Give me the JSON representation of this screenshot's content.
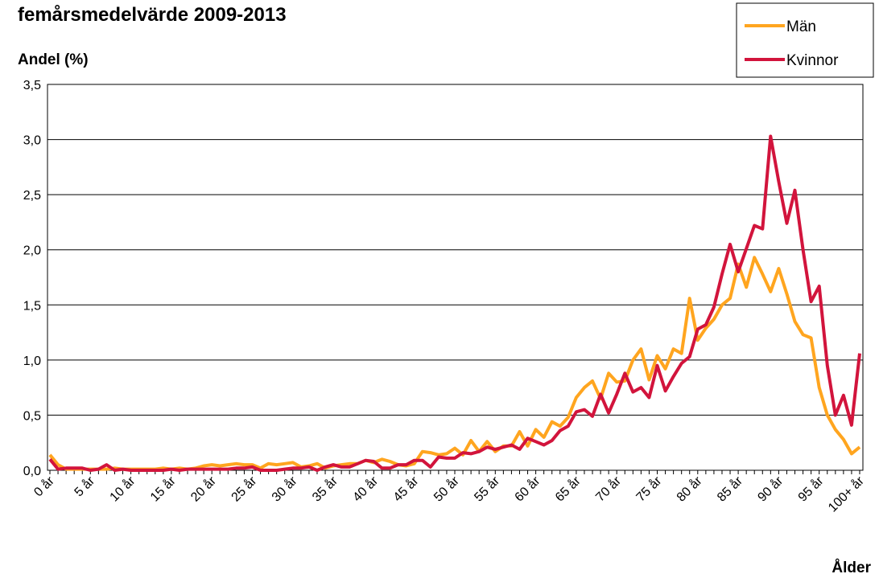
{
  "chart_data": {
    "type": "line",
    "title": "femårsmedelvärde 2009-2013",
    "y_label": "Andel (%)",
    "x_label": "Ålder",
    "categories": [
      "0 år",
      null,
      null,
      null,
      null,
      "5 år",
      null,
      null,
      null,
      null,
      "10 år",
      null,
      null,
      null,
      null,
      "15 år",
      null,
      null,
      null,
      null,
      "20 år",
      null,
      null,
      null,
      null,
      "25 år",
      null,
      null,
      null,
      null,
      "30 år",
      null,
      null,
      null,
      null,
      "35 år",
      null,
      null,
      null,
      null,
      "40 år",
      null,
      null,
      null,
      null,
      "45 år",
      null,
      null,
      null,
      null,
      "50 år",
      null,
      null,
      null,
      null,
      "55 år",
      null,
      null,
      null,
      null,
      "60 år",
      null,
      null,
      null,
      null,
      "65 år",
      null,
      null,
      null,
      null,
      "70 år",
      null,
      null,
      null,
      null,
      "75 år",
      null,
      null,
      null,
      null,
      "80 år",
      null,
      null,
      null,
      null,
      "85 år",
      null,
      null,
      null,
      null,
      "90 år",
      null,
      null,
      null,
      null,
      "95 år",
      null,
      null,
      null,
      null,
      "100+ år"
    ],
    "series": [
      {
        "name": "Män",
        "color": "#ffa51f",
        "values": [
          0.14,
          0.05,
          0.01,
          0.01,
          0.01,
          0.01,
          0.01,
          0.01,
          0.02,
          0.01,
          0.01,
          0.01,
          0.01,
          0.01,
          0.02,
          0.01,
          0.02,
          0.01,
          0.02,
          0.04,
          0.05,
          0.04,
          0.05,
          0.06,
          0.05,
          0.05,
          0.02,
          0.06,
          0.05,
          0.06,
          0.07,
          0.03,
          0.04,
          0.06,
          0.02,
          0.04,
          0.05,
          0.06,
          0.06,
          0.09,
          0.07,
          0.1,
          0.08,
          0.05,
          0.04,
          0.06,
          0.17,
          0.16,
          0.14,
          0.15,
          0.2,
          0.14,
          0.27,
          0.17,
          0.26,
          0.17,
          0.22,
          0.22,
          0.35,
          0.22,
          0.37,
          0.3,
          0.44,
          0.4,
          0.48,
          0.66,
          0.75,
          0.81,
          0.65,
          0.88,
          0.8,
          0.81,
          1.0,
          1.1,
          0.82,
          1.04,
          0.92,
          1.1,
          1.06,
          1.56,
          1.18,
          1.29,
          1.37,
          1.5,
          1.56,
          1.87,
          1.66,
          1.93,
          1.78,
          1.62,
          1.83,
          1.6,
          1.35,
          1.23,
          1.2,
          0.75,
          0.5,
          0.37,
          0.28,
          0.15,
          0.21
        ]
      },
      {
        "name": "Kvinnor",
        "color": "#d2143c",
        "values": [
          0.1,
          0.01,
          0.02,
          0.02,
          0.02,
          0.0,
          0.01,
          0.05,
          0.0,
          0.01,
          0.0,
          0.0,
          0.0,
          0.0,
          0.0,
          0.01,
          0.0,
          0.01,
          0.01,
          0.01,
          0.01,
          0.01,
          0.01,
          0.02,
          0.02,
          0.03,
          0.0,
          0.0,
          0.0,
          0.01,
          0.02,
          0.02,
          0.03,
          0.0,
          0.03,
          0.05,
          0.03,
          0.03,
          0.06,
          0.09,
          0.08,
          0.02,
          0.02,
          0.05,
          0.05,
          0.09,
          0.09,
          0.03,
          0.12,
          0.11,
          0.11,
          0.16,
          0.15,
          0.17,
          0.21,
          0.19,
          0.21,
          0.23,
          0.19,
          0.29,
          0.26,
          0.23,
          0.27,
          0.36,
          0.4,
          0.53,
          0.55,
          0.49,
          0.69,
          0.52,
          0.69,
          0.88,
          0.71,
          0.75,
          0.66,
          0.95,
          0.72,
          0.85,
          0.97,
          1.03,
          1.28,
          1.32,
          1.48,
          1.78,
          2.05,
          1.8,
          2.01,
          2.22,
          2.19,
          3.03,
          2.62,
          2.24,
          2.54,
          2.0,
          1.53,
          1.67,
          0.95,
          0.5,
          0.68,
          0.41,
          1.06
        ]
      }
    ],
    "ylim": [
      0,
      3.5
    ],
    "yticks": [
      {
        "value": 0,
        "label": "0,0"
      },
      {
        "value": 0.5,
        "label": "0,5"
      },
      {
        "value": 1,
        "label": "1,0"
      },
      {
        "value": 1.5,
        "label": "1,5"
      },
      {
        "value": 2,
        "label": "2,0"
      },
      {
        "value": 2.5,
        "label": "2,5"
      },
      {
        "value": 3,
        "label": "3,0"
      },
      {
        "value": 3.5,
        "label": "3,5"
      }
    ],
    "grid": true,
    "legend": "top-right"
  }
}
